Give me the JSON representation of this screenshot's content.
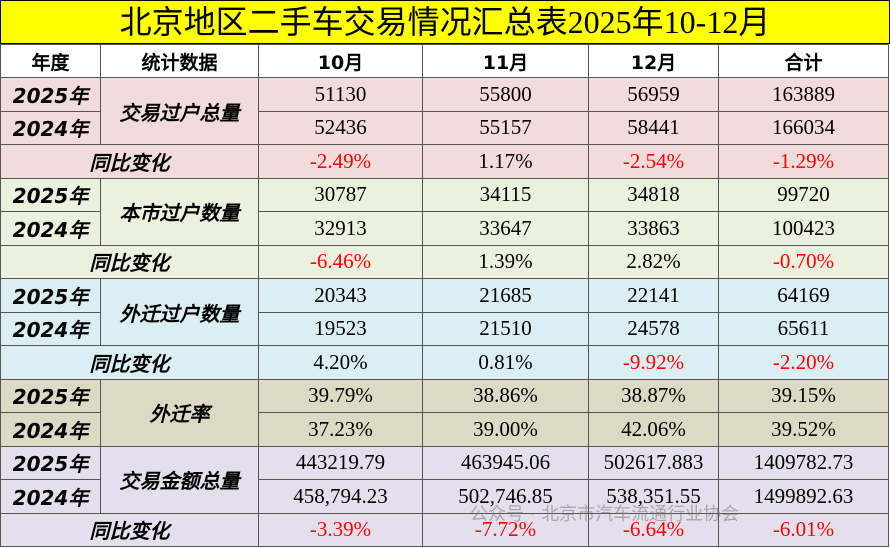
{
  "header": {
    "title": "北京地区二手车交易情况汇总表2025年10-12月"
  },
  "table": {
    "columns": [
      "年度",
      "统计数据",
      "10月",
      "11月",
      "12月",
      "合计"
    ],
    "groups": [
      {
        "label": "交易过户总量",
        "rows": [
          {
            "year": "2025年",
            "values": [
              "51130",
              "55800",
              "56959",
              "163889"
            ]
          },
          {
            "year": "2024年",
            "values": [
              "52436",
              "55157",
              "58441",
              "166034"
            ]
          }
        ],
        "yoy_label": "同比变化",
        "yoy": [
          "-2.49%",
          "1.17%",
          "-2.54%",
          "-1.29%"
        ]
      },
      {
        "label": "本市过户数量",
        "rows": [
          {
            "year": "2025年",
            "values": [
              "30787",
              "34115",
              "34818",
              "99720"
            ]
          },
          {
            "year": "2024年",
            "values": [
              "32913",
              "33647",
              "33863",
              "100423"
            ]
          }
        ],
        "yoy_label": "同比变化",
        "yoy": [
          "-6.46%",
          "1.39%",
          "2.82%",
          "-0.70%"
        ]
      },
      {
        "label": "外迁过户数量",
        "rows": [
          {
            "year": "2025年",
            "values": [
              "20343",
              "21685",
              "22141",
              "64169"
            ]
          },
          {
            "year": "2024年",
            "values": [
              "19523",
              "21510",
              "24578",
              "65611"
            ]
          }
        ],
        "yoy_label": "同比变化",
        "yoy": [
          "4.20%",
          "0.81%",
          "-9.92%",
          "-2.20%"
        ]
      },
      {
        "label": "外迁率",
        "rows": [
          {
            "year": "2025年",
            "values": [
              "39.79%",
              "38.86%",
              "38.87%",
              "39.15%"
            ]
          },
          {
            "year": "2024年",
            "values": [
              "37.23%",
              "39.00%",
              "42.06%",
              "39.52%"
            ]
          }
        ]
      },
      {
        "label": "交易金额总量",
        "rows": [
          {
            "year": "2025年",
            "values": [
              "443219.79",
              "463945.06",
              "502617.883",
              "1409782.73"
            ]
          },
          {
            "year": "2024年",
            "values": [
              "458,794.23",
              "502,746.85",
              "538,351.55",
              "1499892.63"
            ]
          }
        ],
        "yoy_label": "同比变化",
        "yoy": [
          "-3.39%",
          "-7.72%",
          "-6.64%",
          "-6.01%"
        ]
      }
    ]
  },
  "watermark": "公众号 · 北京市汽车流通行业协会"
}
